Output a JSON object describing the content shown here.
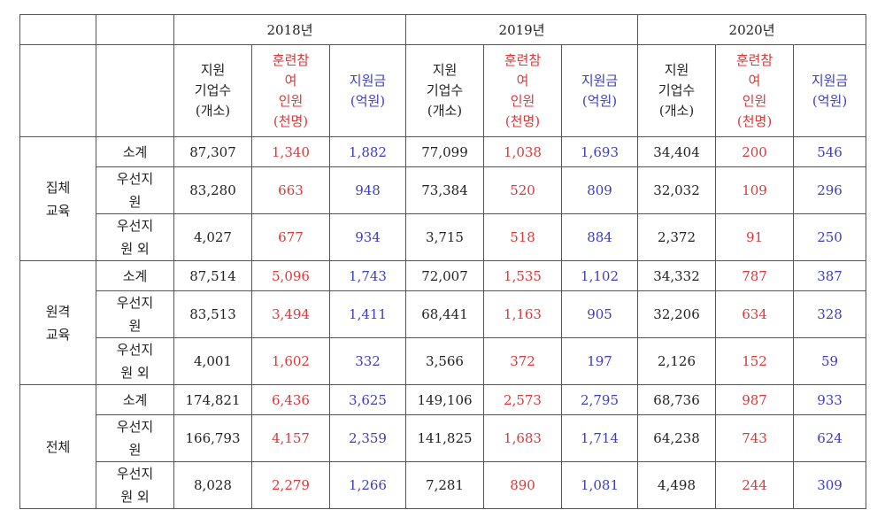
{
  "years": [
    "2018년",
    "2019년",
    "2020년"
  ],
  "metric_headers": [
    {
      "text": "지원\n기업수\n(개소)",
      "color": "black"
    },
    {
      "text": "훈련참\n여\n인원\n(천명)",
      "color": "red"
    },
    {
      "text": "지원금\n(억원)",
      "color": "blue"
    }
  ],
  "groups": [
    {
      "label": "집체\n교육",
      "rows": [
        {
          "sub": "소계",
          "values": [
            "87,307",
            "1,340",
            "1,882",
            "77,099",
            "1,038",
            "1,693",
            "34,404",
            "200",
            "546"
          ]
        },
        {
          "sub": "우선지\n원",
          "values": [
            "83,280",
            "663",
            "948",
            "73,384",
            "520",
            "809",
            "32,032",
            "109",
            "296"
          ]
        },
        {
          "sub": "우선지\n원 외",
          "values": [
            "4,027",
            "677",
            "934",
            "3,715",
            "518",
            "884",
            "2,372",
            "91",
            "250"
          ]
        }
      ]
    },
    {
      "label": "원격\n교육",
      "rows": [
        {
          "sub": "소계",
          "values": [
            "87,514",
            "5,096",
            "1,743",
            "72,007",
            "1,535",
            "1,102",
            "34,332",
            "787",
            "387"
          ]
        },
        {
          "sub": "우선지\n원",
          "values": [
            "83,513",
            "3,494",
            "1,411",
            "68,441",
            "1,163",
            "905",
            "32,206",
            "634",
            "328"
          ]
        },
        {
          "sub": "우선지\n원 외",
          "values": [
            "4,001",
            "1,602",
            "332",
            "3,566",
            "372",
            "197",
            "2,126",
            "152",
            "59"
          ]
        }
      ]
    },
    {
      "label": "전체",
      "rows": [
        {
          "sub": "소계",
          "values": [
            "174,821",
            "6,436",
            "3,625",
            "149,106",
            "2,573",
            "2,795",
            "68,736",
            "987",
            "933"
          ]
        },
        {
          "sub": "우선지\n원",
          "values": [
            "166,793",
            "4,157",
            "2,359",
            "141,825",
            "1,683",
            "1,714",
            "64,238",
            "743",
            "624"
          ]
        },
        {
          "sub": "우선지\n원 외",
          "values": [
            "8,028",
            "2,279",
            "1,266",
            "7,281",
            "890",
            "1,081",
            "4,498",
            "244",
            "309"
          ]
        }
      ]
    }
  ],
  "colors": {
    "red": "#d63a3a",
    "blue": "#3d3dbf",
    "border": "#555555"
  }
}
